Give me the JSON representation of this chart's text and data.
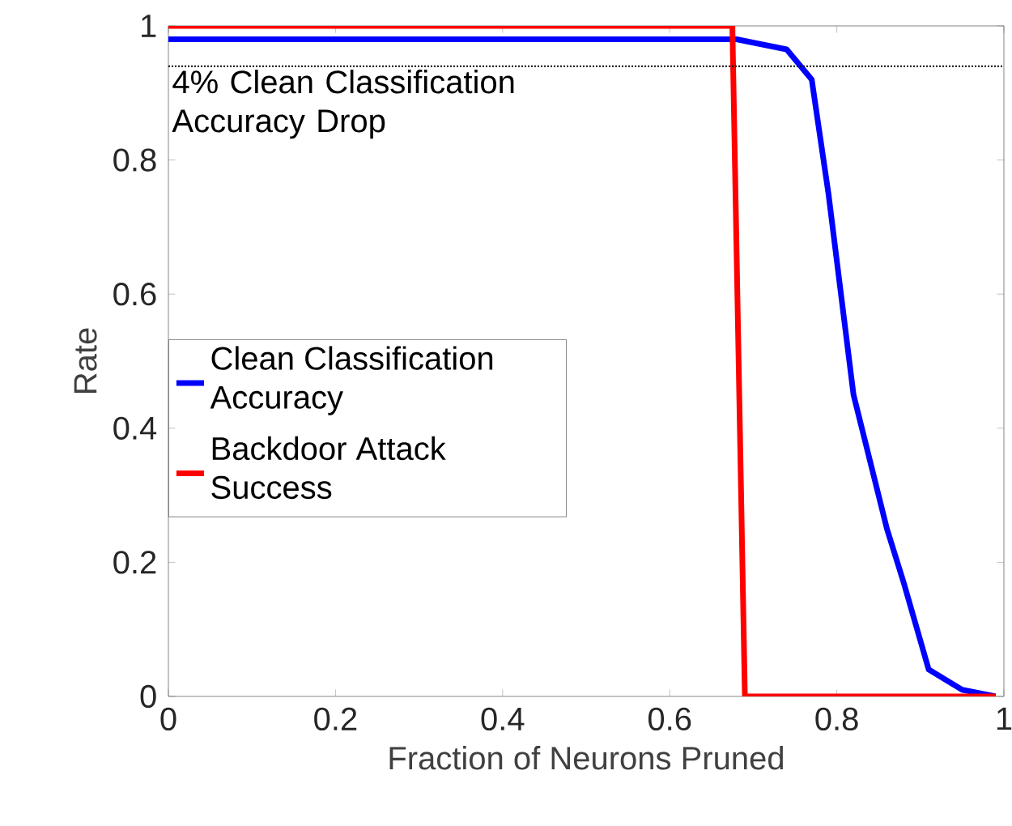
{
  "chart_data": {
    "type": "line",
    "xlabel": "Fraction of Neurons Pruned",
    "ylabel": "Rate",
    "xlim": [
      0,
      1
    ],
    "ylim": [
      0,
      1
    ],
    "xticks": [
      0,
      0.2,
      0.4,
      0.6,
      0.8,
      1
    ],
    "yticks": [
      0,
      0.2,
      0.4,
      0.6,
      0.8,
      1
    ],
    "legend": "left",
    "grid": false,
    "marker": "none",
    "line_style": "solid",
    "series": [
      {
        "name": "Clean Classification Accuracy",
        "color": "#0000ff",
        "x": [
          0,
          0.68,
          0.7,
          0.74,
          0.77,
          0.79,
          0.82,
          0.86,
          0.88,
          0.91,
          0.95,
          0.99
        ],
        "values": [
          0.98,
          0.98,
          0.975,
          0.965,
          0.92,
          0.75,
          0.45,
          0.25,
          0.17,
          0.04,
          0.01,
          0
        ]
      },
      {
        "name": "Backdoor Attack Success",
        "color": "#ff0000",
        "x": [
          0,
          0.675,
          0.69,
          0.99
        ],
        "values": [
          1,
          1,
          0,
          0
        ]
      }
    ],
    "ref_lines": [
      {
        "axis": "y",
        "value": 0.94,
        "label": "4% Clean Classification Accuracy Drop",
        "line_style": "dotted",
        "color": "#000000"
      }
    ]
  }
}
